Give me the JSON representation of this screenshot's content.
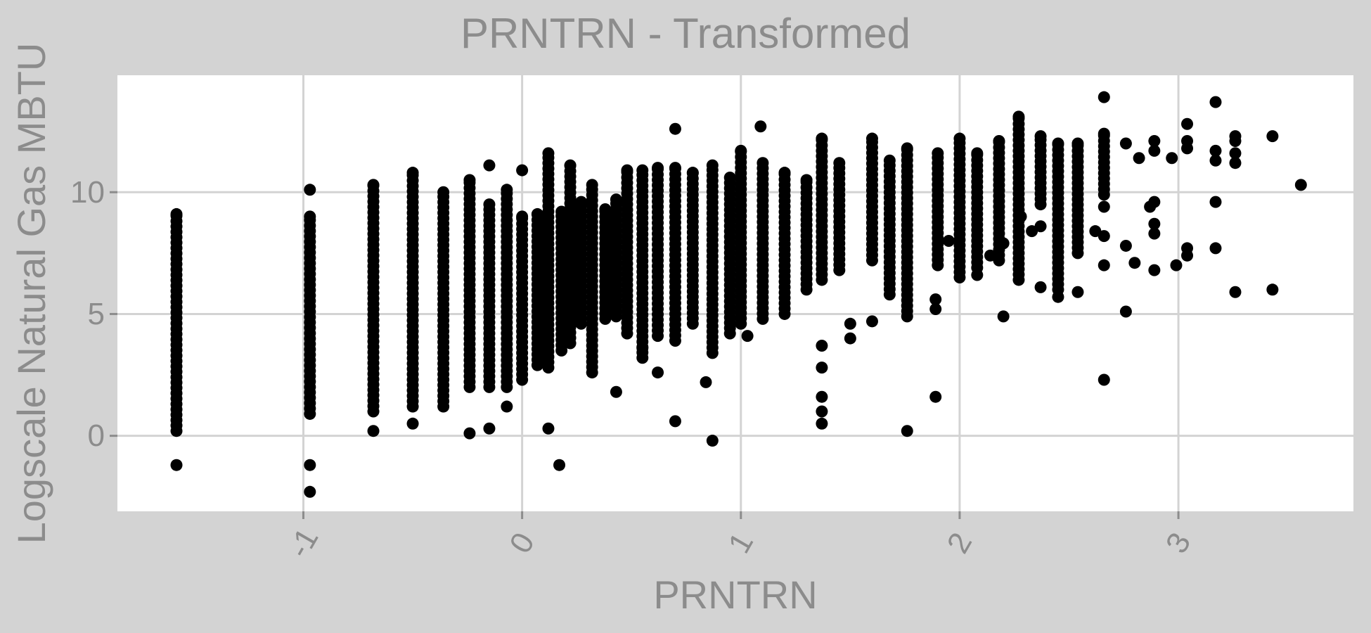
{
  "chart_data": {
    "type": "scatter",
    "title": "PRNTRN - Transformed",
    "xlabel": "PRNTRN",
    "ylabel": "Logscale Natural Gas MBTU",
    "xlim": [
      -1.85,
      3.8
    ],
    "ylim": [
      -3.1,
      14.8
    ],
    "x_ticks": [
      -1,
      0,
      1,
      2,
      3
    ],
    "x_tick_labels": [
      "-1",
      "0",
      "1",
      "2",
      "3"
    ],
    "y_ticks": [
      0,
      5,
      10
    ],
    "y_tick_labels": [
      "0",
      "5",
      "10"
    ],
    "grid": true,
    "legend": "none",
    "colors": {
      "background": "#d3d3d3",
      "panel": "#ffffff",
      "grid": "#d3d3d3",
      "point": "#000000",
      "text": "#8c8c8c"
    },
    "columns": [
      {
        "x": -1.58,
        "ymin": 0.2,
        "ymax": 9.1
      },
      {
        "x": -0.97,
        "ymin": 0.9,
        "ymax": 9.0
      },
      {
        "x": -0.68,
        "ymin": 1.0,
        "ymax": 10.3
      },
      {
        "x": -0.5,
        "ymin": 1.2,
        "ymax": 10.8
      },
      {
        "x": -0.36,
        "ymin": 1.2,
        "ymax": 10.0
      },
      {
        "x": -0.24,
        "ymin": 2.0,
        "ymax": 10.5
      },
      {
        "x": -0.15,
        "ymin": 2.0,
        "ymax": 9.5
      },
      {
        "x": -0.07,
        "ymin": 2.0,
        "ymax": 10.1
      },
      {
        "x": 0.0,
        "ymin": 2.3,
        "ymax": 9.0
      },
      {
        "x": 0.07,
        "ymin": 2.9,
        "ymax": 9.1
      },
      {
        "x": 0.12,
        "ymin": 2.8,
        "ymax": 11.6
      },
      {
        "x": 0.18,
        "ymin": 3.5,
        "ymax": 9.2
      },
      {
        "x": 0.22,
        "ymin": 3.8,
        "ymax": 11.1
      },
      {
        "x": 0.27,
        "ymin": 4.6,
        "ymax": 9.6
      },
      {
        "x": 0.32,
        "ymin": 2.6,
        "ymax": 10.3
      },
      {
        "x": 0.38,
        "ymin": 4.8,
        "ymax": 9.3
      },
      {
        "x": 0.43,
        "ymin": 4.9,
        "ymax": 9.7
      },
      {
        "x": 0.48,
        "ymin": 4.2,
        "ymax": 10.9
      },
      {
        "x": 0.55,
        "ymin": 3.2,
        "ymax": 10.9
      },
      {
        "x": 0.62,
        "ymin": 4.1,
        "ymax": 11.0
      },
      {
        "x": 0.7,
        "ymin": 3.9,
        "ymax": 11.0
      },
      {
        "x": 0.78,
        "ymin": 4.6,
        "ymax": 10.8
      },
      {
        "x": 0.87,
        "ymin": 3.4,
        "ymax": 11.1
      },
      {
        "x": 0.95,
        "ymin": 4.2,
        "ymax": 10.6
      },
      {
        "x": 1.0,
        "ymin": 4.6,
        "ymax": 11.7
      },
      {
        "x": 1.1,
        "ymin": 4.8,
        "ymax": 11.2
      },
      {
        "x": 1.2,
        "ymin": 5.0,
        "ymax": 10.8
      },
      {
        "x": 1.3,
        "ymin": 6.0,
        "ymax": 10.5
      },
      {
        "x": 1.37,
        "ymin": 6.4,
        "ymax": 12.2
      },
      {
        "x": 1.45,
        "ymin": 6.8,
        "ymax": 11.2
      },
      {
        "x": 1.6,
        "ymin": 7.2,
        "ymax": 12.2
      },
      {
        "x": 1.68,
        "ymin": 5.8,
        "ymax": 11.3
      },
      {
        "x": 1.76,
        "ymin": 4.9,
        "ymax": 11.8
      },
      {
        "x": 1.9,
        "ymin": 7.0,
        "ymax": 11.6
      },
      {
        "x": 2.0,
        "ymin": 6.5,
        "ymax": 12.2
      },
      {
        "x": 2.08,
        "ymin": 6.9,
        "ymax": 11.6
      },
      {
        "x": 2.18,
        "ymin": 7.2,
        "ymax": 12.1
      },
      {
        "x": 2.27,
        "ymin": 6.4,
        "ymax": 13.1
      },
      {
        "x": 2.37,
        "ymin": 9.5,
        "ymax": 12.3
      },
      {
        "x": 2.45,
        "ymin": 6.0,
        "ymax": 12.0
      },
      {
        "x": 2.54,
        "ymin": 7.5,
        "ymax": 12.0
      },
      {
        "x": 2.66,
        "ymin": 9.9,
        "ymax": 12.4
      }
    ],
    "scatter_points": [
      {
        "x": -1.58,
        "y": -1.2
      },
      {
        "x": -0.97,
        "y": -1.2
      },
      {
        "x": -0.97,
        "y": -2.3
      },
      {
        "x": -0.97,
        "y": 10.1
      },
      {
        "x": -0.68,
        "y": 0.2
      },
      {
        "x": -0.5,
        "y": 0.5
      },
      {
        "x": -0.24,
        "y": 0.1
      },
      {
        "x": -0.15,
        "y": 0.3
      },
      {
        "x": -0.15,
        "y": 11.1
      },
      {
        "x": -0.07,
        "y": 1.2
      },
      {
        "x": 0.0,
        "y": 10.9
      },
      {
        "x": 0.12,
        "y": 0.3
      },
      {
        "x": 0.17,
        "y": -1.2
      },
      {
        "x": 0.43,
        "y": 1.8
      },
      {
        "x": 0.7,
        "y": 0.6
      },
      {
        "x": 0.84,
        "y": 2.2
      },
      {
        "x": 0.87,
        "y": -0.2
      },
      {
        "x": 0.7,
        "y": 12.6
      },
      {
        "x": 0.62,
        "y": 2.6
      },
      {
        "x": 0.55,
        "y": 3.6
      },
      {
        "x": 1.03,
        "y": 4.1
      },
      {
        "x": 1.09,
        "y": 12.7
      },
      {
        "x": 1.37,
        "y": 0.5
      },
      {
        "x": 1.37,
        "y": 1.0
      },
      {
        "x": 1.37,
        "y": 1.6
      },
      {
        "x": 1.37,
        "y": 2.8
      },
      {
        "x": 1.37,
        "y": 3.7
      },
      {
        "x": 1.5,
        "y": 4.0
      },
      {
        "x": 1.5,
        "y": 4.6
      },
      {
        "x": 1.6,
        "y": 4.7
      },
      {
        "x": 1.76,
        "y": 0.2
      },
      {
        "x": 1.89,
        "y": 1.6
      },
      {
        "x": 1.89,
        "y": 5.2
      },
      {
        "x": 1.89,
        "y": 5.6
      },
      {
        "x": 2.2,
        "y": 4.9
      },
      {
        "x": 2.45,
        "y": 5.7
      },
      {
        "x": 2.54,
        "y": 5.9
      },
      {
        "x": 2.62,
        "y": 8.4
      },
      {
        "x": 2.66,
        "y": 2.3
      },
      {
        "x": 2.66,
        "y": 7.0
      },
      {
        "x": 2.66,
        "y": 8.2
      },
      {
        "x": 2.66,
        "y": 9.4
      },
      {
        "x": 2.66,
        "y": 13.9
      },
      {
        "x": 2.76,
        "y": 5.1
      },
      {
        "x": 2.76,
        "y": 7.8
      },
      {
        "x": 2.76,
        "y": 12.0
      },
      {
        "x": 2.8,
        "y": 7.1
      },
      {
        "x": 2.82,
        "y": 11.4
      },
      {
        "x": 2.87,
        "y": 9.4
      },
      {
        "x": 2.89,
        "y": 6.8
      },
      {
        "x": 2.89,
        "y": 8.3
      },
      {
        "x": 2.89,
        "y": 8.7
      },
      {
        "x": 2.89,
        "y": 9.6
      },
      {
        "x": 2.89,
        "y": 11.7
      },
      {
        "x": 2.89,
        "y": 12.1
      },
      {
        "x": 2.97,
        "y": 11.4
      },
      {
        "x": 2.99,
        "y": 7.0
      },
      {
        "x": 3.04,
        "y": 7.4
      },
      {
        "x": 3.04,
        "y": 7.7
      },
      {
        "x": 3.04,
        "y": 11.8
      },
      {
        "x": 3.04,
        "y": 12.1
      },
      {
        "x": 3.04,
        "y": 12.8
      },
      {
        "x": 3.17,
        "y": 7.7
      },
      {
        "x": 3.17,
        "y": 9.6
      },
      {
        "x": 3.17,
        "y": 11.3
      },
      {
        "x": 3.17,
        "y": 11.7
      },
      {
        "x": 3.17,
        "y": 13.7
      },
      {
        "x": 3.26,
        "y": 5.9
      },
      {
        "x": 3.26,
        "y": 11.2
      },
      {
        "x": 3.26,
        "y": 11.6
      },
      {
        "x": 3.26,
        "y": 12.1
      },
      {
        "x": 3.26,
        "y": 12.3
      },
      {
        "x": 3.43,
        "y": 6.0
      },
      {
        "x": 3.43,
        "y": 12.3
      },
      {
        "x": 3.56,
        "y": 10.3
      },
      {
        "x": 2.37,
        "y": 6.1
      },
      {
        "x": 2.37,
        "y": 8.6
      },
      {
        "x": 2.28,
        "y": 9.0
      },
      {
        "x": 2.08,
        "y": 6.6
      },
      {
        "x": 1.95,
        "y": 8.0
      },
      {
        "x": 2.33,
        "y": 8.4
      },
      {
        "x": 2.14,
        "y": 7.4
      },
      {
        "x": 2.2,
        "y": 7.9
      }
    ]
  }
}
